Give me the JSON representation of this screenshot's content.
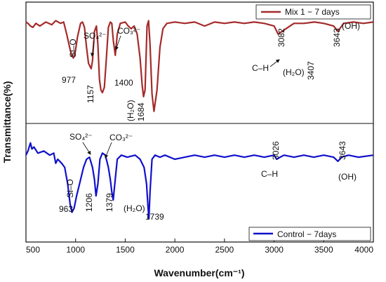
{
  "chart_data": {
    "type": "line",
    "xlabel": "Wavenumber(cm⁻¹)",
    "ylabel": "Transmittance(%)",
    "xlim": [
      500,
      4000
    ],
    "x_ticks": [
      "500",
      "1000",
      "1500",
      "2000",
      "2500",
      "3000",
      "3500",
      "4000"
    ],
    "grid": false,
    "panels": [
      {
        "legend": "Mix 1 − 7 days",
        "legend_position": "top-right",
        "color": "#a52a2a",
        "x": [
          500,
          520,
          545,
          570,
          600,
          640,
          700,
          760,
          800,
          850,
          880,
          910,
          940,
          960,
          977,
          995,
          1020,
          1050,
          1070,
          1090,
          1110,
          1130,
          1150,
          1157,
          1170,
          1190,
          1210,
          1225,
          1240,
          1255,
          1270,
          1290,
          1310,
          1330,
          1350,
          1365,
          1380,
          1400,
          1420,
          1450,
          1500,
          1530,
          1560,
          1590,
          1620,
          1650,
          1670,
          1684,
          1700,
          1720,
          1735,
          1750,
          1770,
          1790,
          1820,
          1850,
          1880,
          1920,
          2000,
          2100,
          2200,
          2300,
          2400,
          2500,
          2600,
          2700,
          2800,
          2900,
          2950,
          3000,
          3040,
          3082,
          3120,
          3160,
          3200,
          3300,
          3407,
          3500,
          3600,
          3643,
          3700,
          3800,
          3900,
          4000
        ],
        "y": [
          89,
          88,
          86,
          85,
          88,
          86,
          89,
          87,
          90,
          88,
          89,
          80,
          70,
          64,
          62,
          66,
          78,
          88,
          89,
          85,
          70,
          58,
          55,
          54,
          60,
          82,
          86,
          72,
          46,
          38,
          36,
          40,
          62,
          85,
          89,
          88,
          75,
          64,
          80,
          88,
          89,
          86,
          84,
          86,
          80,
          62,
          42,
          33,
          38,
          86,
          90,
          72,
          35,
          22,
          38,
          70,
          84,
          88,
          89,
          88,
          89,
          86,
          89,
          88,
          89,
          88,
          89,
          88,
          87,
          86,
          80,
          82,
          84,
          86,
          88,
          88,
          89,
          88,
          86,
          82,
          88,
          89,
          88,
          89
        ],
        "annotations": [
          "Si–O",
          "SO₄²⁻",
          "CO₃²⁻",
          "977",
          "1157",
          "1400",
          "(H₂O)",
          "1684",
          "3082",
          "C–H",
          "(H₂O)",
          "3407",
          "3643",
          "(OH)"
        ]
      },
      {
        "legend": "Control − 7days",
        "legend_position": "bottom-right",
        "color": "#1010cc",
        "x": [
          500,
          520,
          545,
          560,
          580,
          620,
          680,
          740,
          780,
          800,
          820,
          860,
          890,
          920,
          945,
          963,
          985,
          1010,
          1040,
          1080,
          1110,
          1140,
          1170,
          1190,
          1206,
          1225,
          1245,
          1270,
          1300,
          1330,
          1350,
          1365,
          1379,
          1395,
          1420,
          1460,
          1520,
          1600,
          1650,
          1690,
          1715,
          1730,
          1739,
          1750,
          1770,
          1800,
          1850,
          1900,
          2000,
          2100,
          2200,
          2300,
          2400,
          2500,
          2600,
          2700,
          2800,
          2900,
          3000,
          3026,
          3060,
          3100,
          3200,
          3300,
          3400,
          3500,
          3600,
          3643,
          3680,
          3750,
          3850,
          4000
        ],
        "y": [
          86,
          88,
          92,
          89,
          90,
          87,
          88,
          86,
          87,
          82,
          84,
          82,
          80,
          72,
          62,
          58,
          60,
          66,
          72,
          80,
          84,
          85,
          80,
          74,
          66,
          72,
          84,
          87,
          86,
          80,
          74,
          68,
          64,
          72,
          84,
          86,
          85,
          86,
          84,
          80,
          72,
          60,
          55,
          68,
          84,
          86,
          85,
          86,
          84,
          85,
          86,
          85,
          86,
          85,
          86,
          85,
          86,
          85,
          86,
          84,
          85,
          86,
          85,
          86,
          85,
          86,
          85,
          83,
          85,
          86,
          85,
          86
        ],
        "annotations": [
          "SO₄²⁻",
          "CO₃²⁻",
          "Si–O",
          "963",
          "1206",
          "1379",
          "(H₂O)",
          "1739",
          "3026",
          "C–H",
          "3643",
          "(OH)"
        ]
      }
    ]
  }
}
